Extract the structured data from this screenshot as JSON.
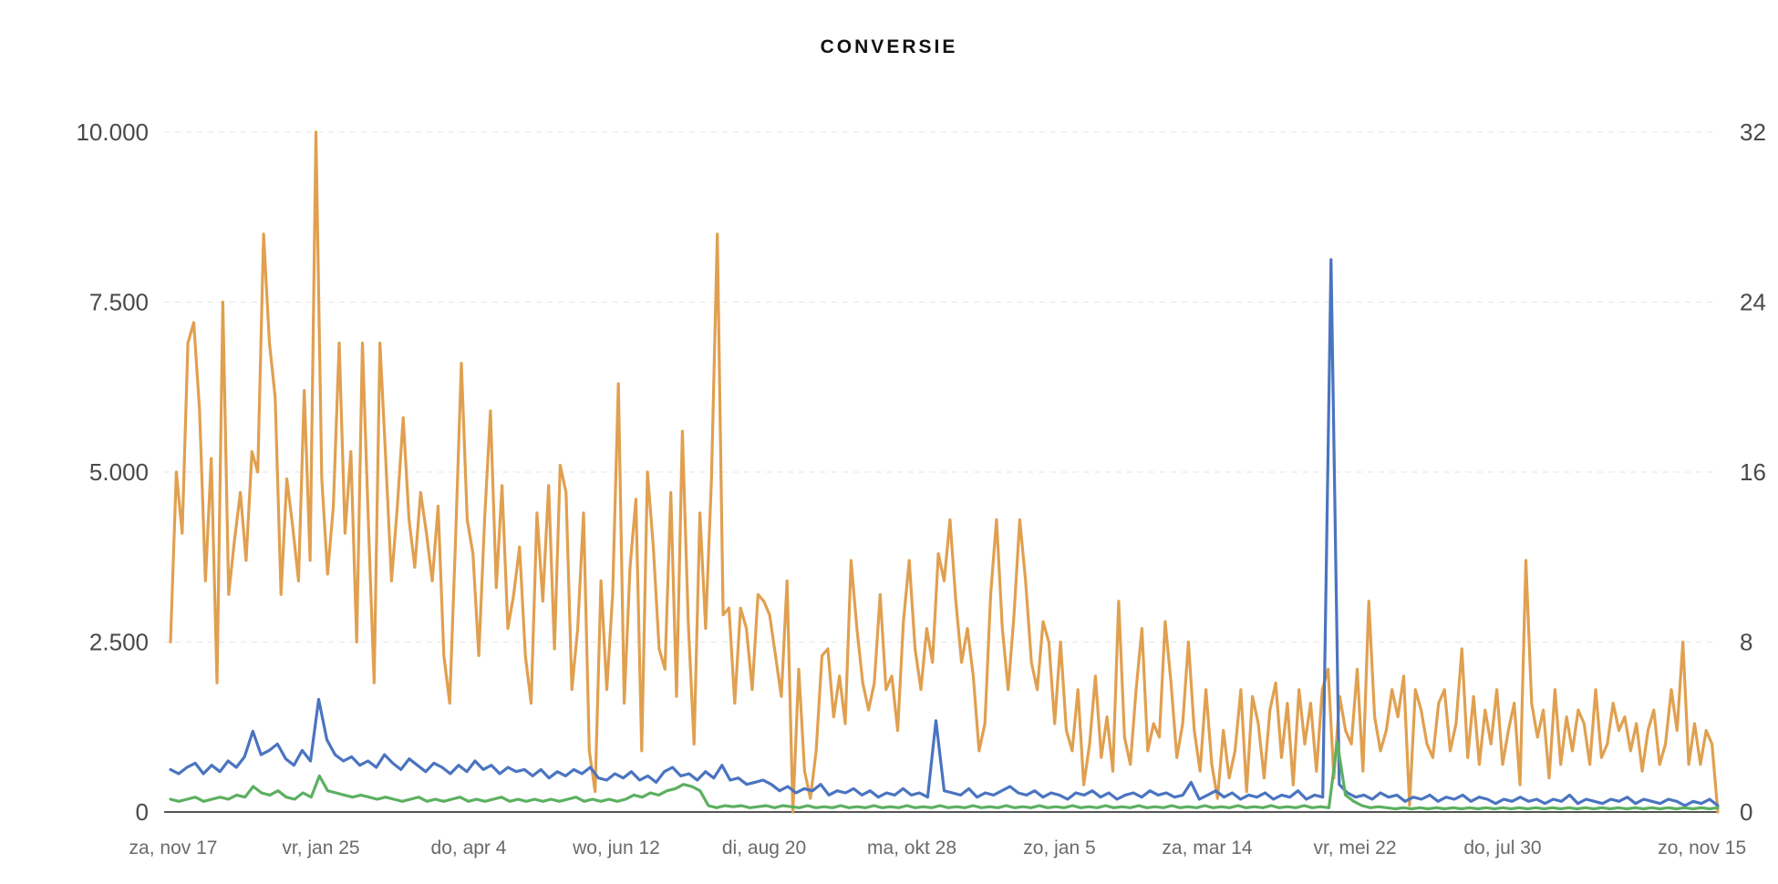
{
  "chart_data": {
    "type": "line",
    "title": "CONVERSIE",
    "x_tick_labels": [
      "za, nov 17",
      "vr, jan 25",
      "do, apr 4",
      "wo, jun 12",
      "di, aug 20",
      "ma, okt 28",
      "zo, jan 5",
      "za, mar 14",
      "vr, mei 22",
      "do, jul 30",
      "zo, nov 15"
    ],
    "y_left": {
      "ticks": [
        "0",
        "2.500",
        "5.000",
        "7.500",
        "10.000"
      ],
      "ylim": [
        0,
        10000
      ]
    },
    "y_right": {
      "ticks": [
        "0",
        "8",
        "16",
        "24",
        "32"
      ],
      "ylim": [
        0,
        32
      ]
    },
    "grid": "horizontal-dashed",
    "legend": "none",
    "series": [
      {
        "axis": "left",
        "color": "#e0a050",
        "x_tick_positions": [
          0,
          1,
          2,
          3,
          4,
          5,
          6,
          7,
          8,
          9,
          10.35
        ],
        "values": [
          2500,
          5000,
          4100,
          6900,
          7200,
          5900,
          3400,
          5200,
          1900,
          7500,
          3200,
          4000,
          4700,
          3700,
          5300,
          5000,
          8500,
          6900,
          6100,
          3200,
          4900,
          4200,
          3400,
          6200,
          3700,
          10000,
          4900,
          3500,
          4500,
          6900,
          4100,
          5300,
          2500,
          6900,
          4300,
          1900,
          6900,
          5200,
          3400,
          4500,
          5800,
          4300,
          3600,
          4700,
          4100,
          3400,
          4500,
          2300,
          1600,
          4000,
          6600,
          4300,
          3800,
          2300,
          4300,
          5900,
          3300,
          4800,
          2700,
          3200,
          3900,
          2300,
          1600,
          4400,
          3100,
          4800,
          2400,
          5100,
          4700,
          1800,
          2700,
          4400,
          900,
          300,
          3400,
          1800,
          3200,
          6300,
          1600,
          3600,
          4600,
          900,
          5000,
          3900,
          2400,
          2100,
          4700,
          1700,
          5600,
          2800,
          1000,
          4400,
          2700,
          4900,
          8500,
          2900,
          3000,
          1600,
          3000,
          2700,
          1800,
          3200,
          3100,
          2900,
          2300,
          1700,
          3400,
          0,
          2100,
          600,
          200,
          900,
          2300,
          2400,
          1400,
          2000,
          1300,
          3700,
          2700,
          1900,
          1500,
          1900,
          3200,
          1800,
          2000,
          1200,
          2800,
          3700,
          2400,
          1800,
          2700,
          2200,
          3800,
          3400,
          4300,
          3100,
          2200,
          2700,
          2000,
          900,
          1300,
          3200,
          4300,
          2700,
          1800,
          2900,
          4300,
          3400,
          2200,
          1800,
          2800,
          2500,
          1300,
          2500,
          1200,
          900,
          1800,
          400,
          1000,
          2000,
          800,
          1400,
          600,
          3100,
          1100,
          700,
          1800,
          2700,
          900,
          1300,
          1100,
          2800,
          1900,
          800,
          1300,
          2500,
          1200,
          600,
          1800,
          700,
          200,
          1200,
          500,
          900,
          1800,
          300,
          1700,
          1300,
          500,
          1500,
          1900,
          800,
          1600,
          400,
          1800,
          1000,
          1600,
          600,
          1800,
          2100,
          500,
          1700,
          1200,
          1000,
          2100,
          600,
          3100,
          1400,
          900,
          1200,
          1800,
          1400,
          2000,
          100,
          1800,
          1500,
          1000,
          800,
          1600,
          1800,
          900,
          1300,
          2400,
          800,
          1700,
          700,
          1500,
          1000,
          1800,
          700,
          1200,
          1600,
          400,
          3700,
          1600,
          1100,
          1500,
          500,
          1800,
          700,
          1400,
          900,
          1500,
          1300,
          700,
          1800,
          800,
          1000,
          1600,
          1200,
          1400,
          900,
          1300,
          600,
          1200,
          1500,
          700,
          1000,
          1800,
          1200,
          2500,
          700,
          1300,
          700,
          1200,
          1000,
          0
        ]
      },
      {
        "axis": "right",
        "color": "#4a74c0",
        "x_tick_positions": [
          0,
          1,
          2,
          3,
          4,
          5,
          6,
          7,
          8,
          9,
          10.35
        ],
        "values": [
          2.0,
          1.8,
          2.1,
          2.3,
          1.8,
          2.2,
          1.9,
          2.4,
          2.1,
          2.6,
          3.8,
          2.7,
          2.9,
          3.2,
          2.5,
          2.2,
          2.9,
          2.4,
          5.3,
          3.4,
          2.7,
          2.4,
          2.6,
          2.2,
          2.4,
          2.1,
          2.7,
          2.3,
          2.0,
          2.5,
          2.2,
          1.9,
          2.3,
          2.1,
          1.8,
          2.2,
          1.9,
          2.4,
          2.0,
          2.2,
          1.8,
          2.1,
          1.9,
          2.0,
          1.7,
          2.0,
          1.6,
          1.9,
          1.7,
          2.0,
          1.8,
          2.1,
          1.6,
          1.5,
          1.8,
          1.6,
          1.9,
          1.5,
          1.7,
          1.4,
          1.9,
          2.1,
          1.7,
          1.8,
          1.5,
          1.9,
          1.6,
          2.2,
          1.5,
          1.6,
          1.3,
          1.4,
          1.5,
          1.3,
          1.0,
          1.2,
          0.9,
          1.1,
          1.0,
          1.3,
          0.8,
          1.0,
          0.9,
          1.1,
          0.8,
          1.0,
          0.7,
          0.9,
          0.8,
          1.1,
          0.8,
          0.9,
          0.7,
          4.3,
          1.0,
          0.9,
          0.8,
          1.1,
          0.7,
          0.9,
          0.8,
          1.0,
          1.2,
          0.9,
          0.8,
          1.0,
          0.7,
          0.9,
          0.8,
          0.6,
          0.9,
          0.8,
          1.0,
          0.7,
          0.9,
          0.6,
          0.8,
          0.9,
          0.7,
          1.0,
          0.8,
          0.9,
          0.7,
          0.8,
          1.4,
          0.6,
          0.8,
          1.0,
          0.7,
          0.9,
          0.6,
          0.8,
          0.7,
          0.9,
          0.6,
          0.8,
          0.7,
          1.0,
          0.6,
          0.8,
          0.7,
          26.0,
          1.3,
          0.9,
          0.7,
          0.8,
          0.6,
          0.9,
          0.7,
          0.8,
          0.5,
          0.7,
          0.6,
          0.8,
          0.5,
          0.7,
          0.6,
          0.8,
          0.5,
          0.7,
          0.6,
          0.4,
          0.6,
          0.5,
          0.7,
          0.5,
          0.6,
          0.4,
          0.6,
          0.5,
          0.8,
          0.4,
          0.6,
          0.5,
          0.4,
          0.6,
          0.5,
          0.7,
          0.4,
          0.6,
          0.5,
          0.4,
          0.6,
          0.5,
          0.3,
          0.5,
          0.4,
          0.6,
          0.3
        ]
      },
      {
        "axis": "right",
        "color": "#5cb060",
        "x_tick_positions": [
          0,
          1,
          2,
          3,
          4,
          5,
          6,
          7,
          8,
          9,
          10.35
        ],
        "values": [
          0.6,
          0.5,
          0.6,
          0.7,
          0.5,
          0.6,
          0.7,
          0.6,
          0.8,
          0.7,
          1.2,
          0.9,
          0.8,
          1.0,
          0.7,
          0.6,
          0.9,
          0.7,
          1.7,
          1.0,
          0.9,
          0.8,
          0.7,
          0.8,
          0.7,
          0.6,
          0.7,
          0.6,
          0.5,
          0.6,
          0.7,
          0.5,
          0.6,
          0.5,
          0.6,
          0.7,
          0.5,
          0.6,
          0.5,
          0.6,
          0.7,
          0.5,
          0.6,
          0.5,
          0.6,
          0.5,
          0.6,
          0.5,
          0.6,
          0.7,
          0.5,
          0.6,
          0.5,
          0.6,
          0.5,
          0.6,
          0.8,
          0.7,
          0.9,
          0.8,
          1.0,
          1.1,
          1.3,
          1.2,
          1.0,
          0.3,
          0.2,
          0.3,
          0.25,
          0.3,
          0.2,
          0.25,
          0.3,
          0.2,
          0.3,
          0.25,
          0.2,
          0.3,
          0.2,
          0.25,
          0.2,
          0.3,
          0.2,
          0.25,
          0.2,
          0.3,
          0.2,
          0.25,
          0.2,
          0.3,
          0.2,
          0.25,
          0.2,
          0.3,
          0.2,
          0.25,
          0.2,
          0.3,
          0.2,
          0.25,
          0.2,
          0.3,
          0.2,
          0.25,
          0.2,
          0.3,
          0.2,
          0.25,
          0.2,
          0.3,
          0.2,
          0.25,
          0.2,
          0.3,
          0.2,
          0.25,
          0.2,
          0.3,
          0.2,
          0.25,
          0.2,
          0.3,
          0.2,
          0.25,
          0.2,
          0.3,
          0.2,
          0.25,
          0.2,
          0.3,
          0.2,
          0.25,
          0.2,
          0.3,
          0.2,
          0.25,
          0.2,
          0.3,
          0.2,
          0.25,
          0.2,
          3.3,
          0.8,
          0.5,
          0.3,
          0.2,
          0.25,
          0.2,
          0.15,
          0.2,
          0.15,
          0.2,
          0.15,
          0.2,
          0.15,
          0.2,
          0.15,
          0.2,
          0.15,
          0.2,
          0.15,
          0.2,
          0.15,
          0.2,
          0.15,
          0.2,
          0.15,
          0.2,
          0.15,
          0.2,
          0.15,
          0.2,
          0.15,
          0.2,
          0.15,
          0.2,
          0.15,
          0.2,
          0.15,
          0.2,
          0.15,
          0.2,
          0.15,
          0.2,
          0.15,
          0.2,
          0.15,
          0.2
        ]
      }
    ]
  }
}
